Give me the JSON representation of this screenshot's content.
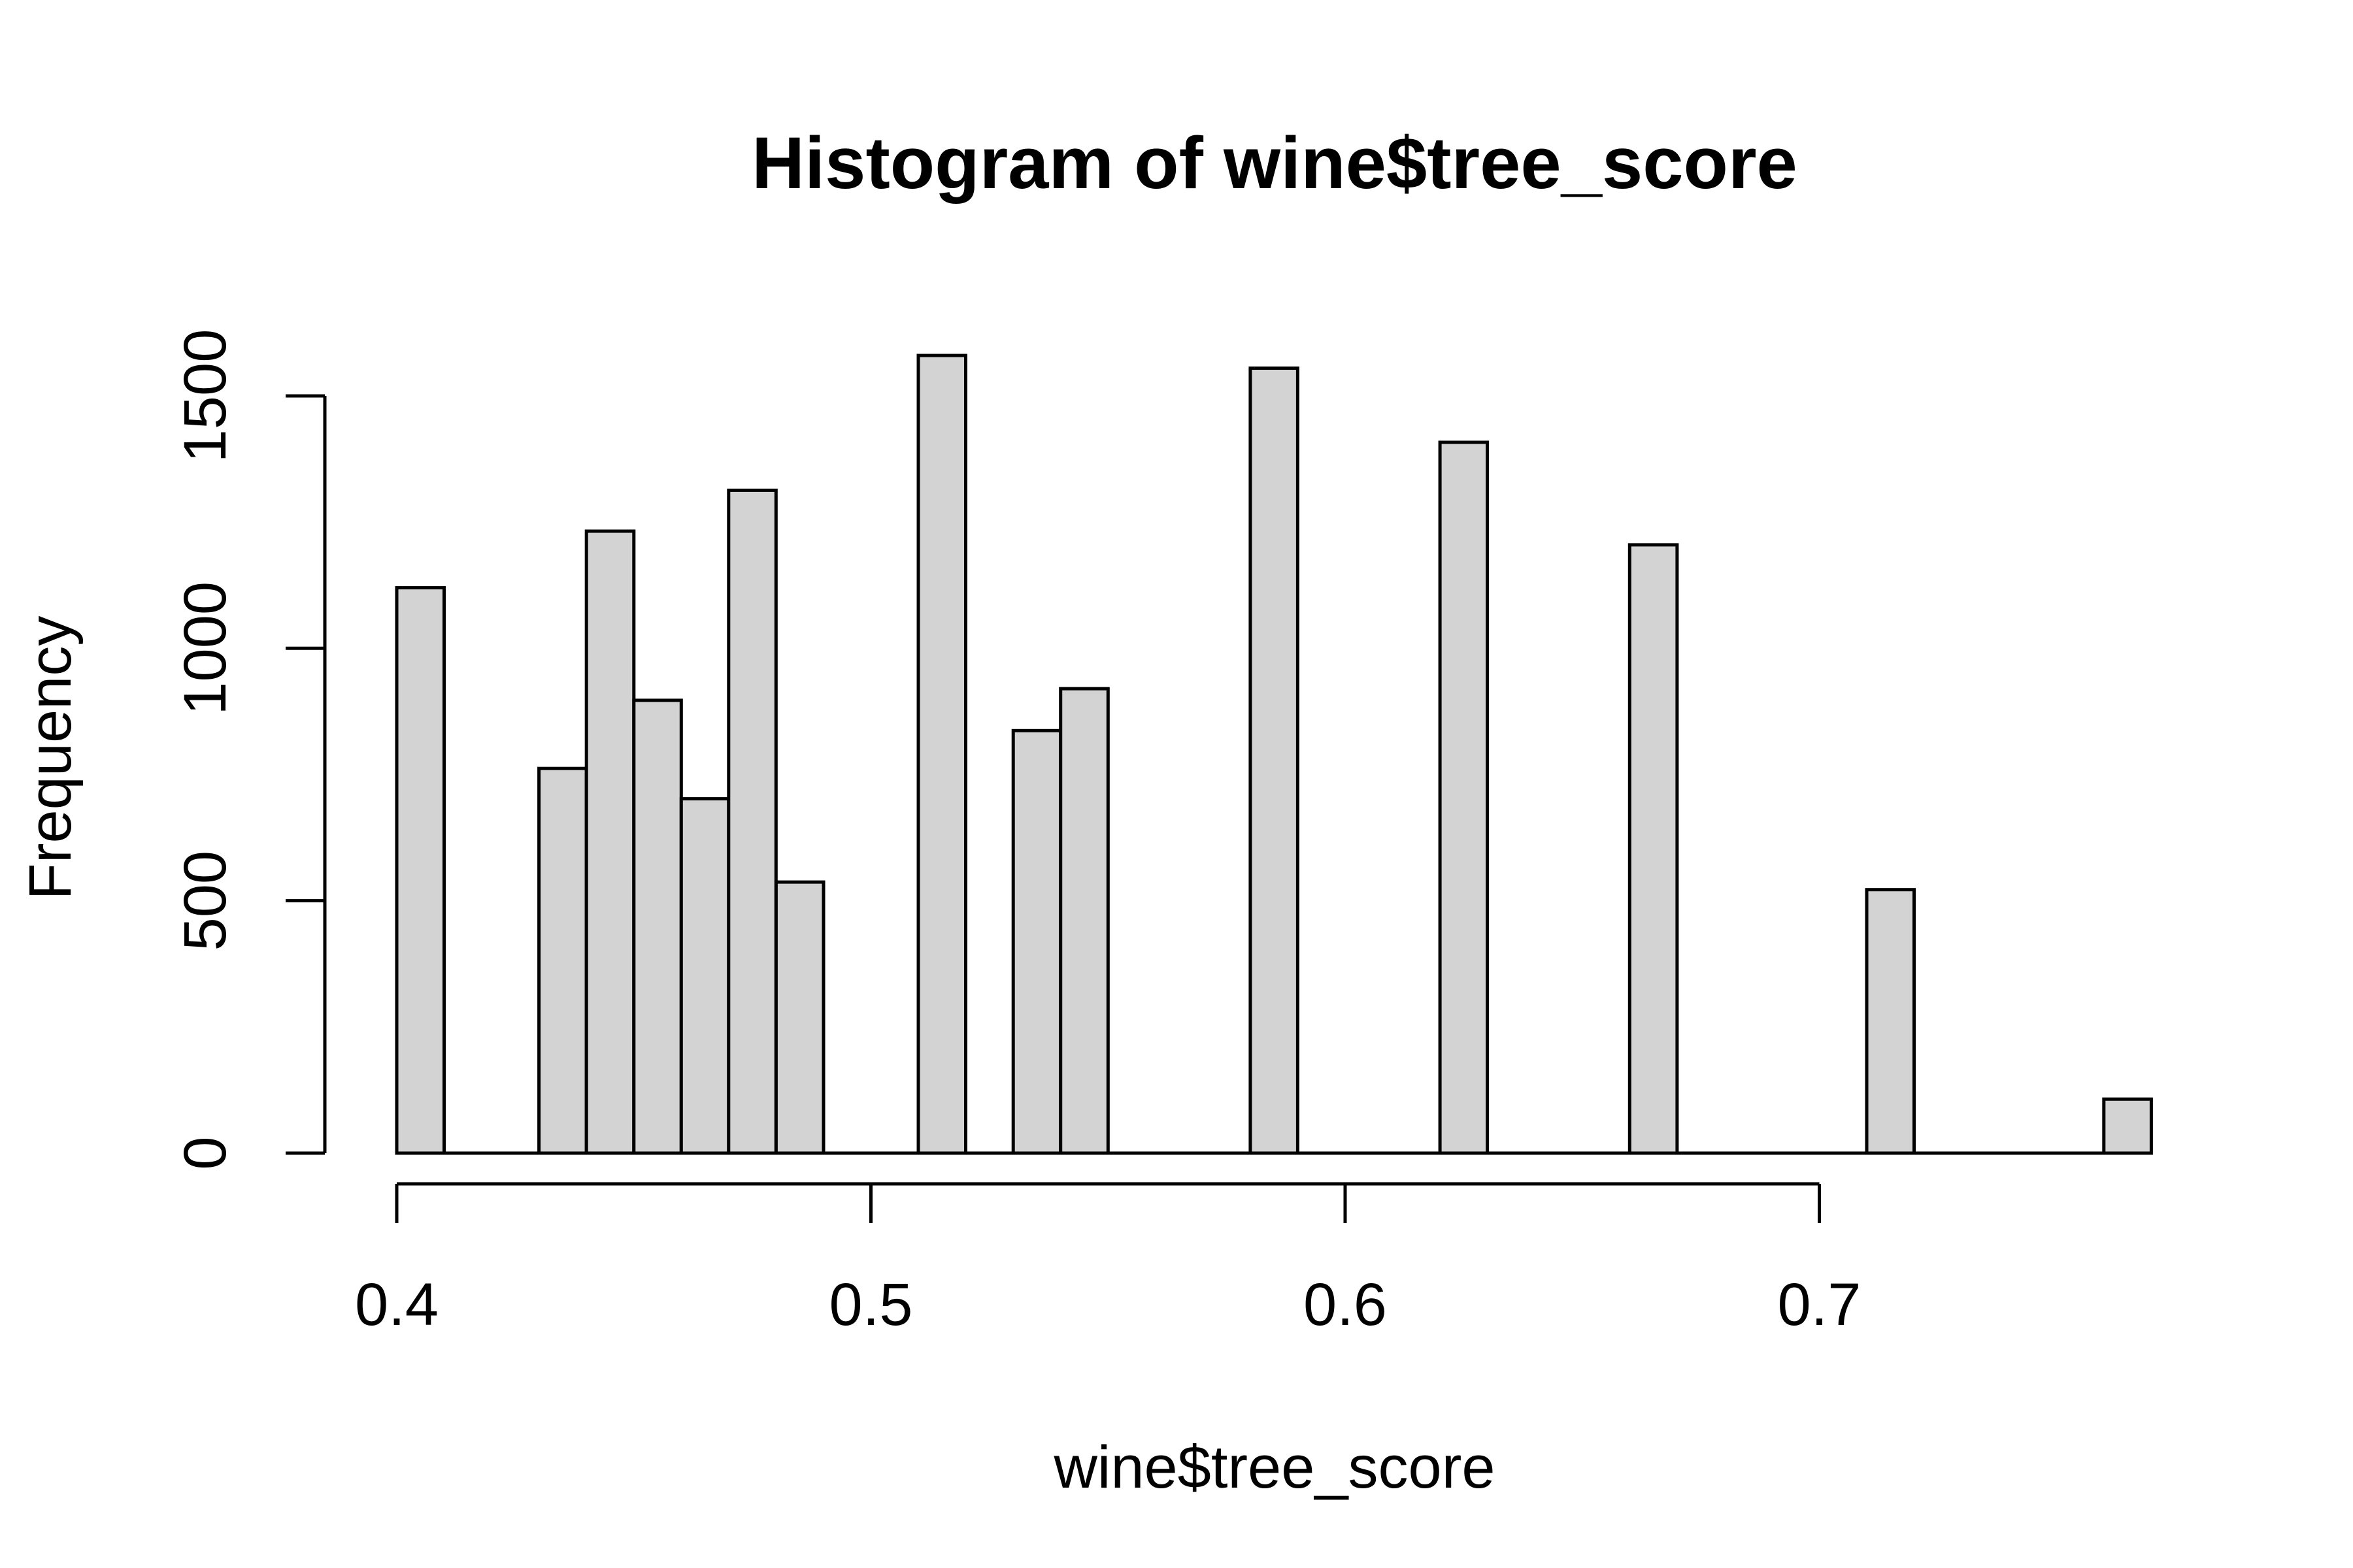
{
  "chart_data": {
    "type": "bar",
    "title": "Histogram of wine$tree_score",
    "xlabel": "wine$tree_score",
    "ylabel": "Frequency",
    "x_ticks": [
      0.4,
      0.5,
      0.6,
      0.7
    ],
    "x_tick_labels": [
      "0.4",
      "0.5",
      "0.6",
      "0.7"
    ],
    "y_ticks": [
      0,
      500,
      1000,
      1500
    ],
    "y_tick_labels": [
      "0",
      "500",
      "1000",
      "1500"
    ],
    "xlim": [
      0.4,
      0.7
    ],
    "ylim": [
      0,
      1500
    ],
    "bin_width": 0.01,
    "bins": [
      {
        "start": 0.4,
        "end": 0.41,
        "count": 1120
      },
      {
        "start": 0.41,
        "end": 0.42,
        "count": 0
      },
      {
        "start": 0.42,
        "end": 0.43,
        "count": 0
      },
      {
        "start": 0.43,
        "end": 0.44,
        "count": 762
      },
      {
        "start": 0.44,
        "end": 0.45,
        "count": 1232
      },
      {
        "start": 0.45,
        "end": 0.46,
        "count": 897
      },
      {
        "start": 0.46,
        "end": 0.47,
        "count": 702
      },
      {
        "start": 0.47,
        "end": 0.48,
        "count": 1313
      },
      {
        "start": 0.48,
        "end": 0.49,
        "count": 537
      },
      {
        "start": 0.49,
        "end": 0.5,
        "count": 0
      },
      {
        "start": 0.5,
        "end": 0.51,
        "count": 0
      },
      {
        "start": 0.51,
        "end": 0.52,
        "count": 1580
      },
      {
        "start": 0.52,
        "end": 0.53,
        "count": 0
      },
      {
        "start": 0.53,
        "end": 0.54,
        "count": 837
      },
      {
        "start": 0.54,
        "end": 0.55,
        "count": 920
      },
      {
        "start": 0.55,
        "end": 0.56,
        "count": 0
      },
      {
        "start": 0.56,
        "end": 0.57,
        "count": 0
      },
      {
        "start": 0.57,
        "end": 0.58,
        "count": 0
      },
      {
        "start": 0.58,
        "end": 0.59,
        "count": 1555
      },
      {
        "start": 0.59,
        "end": 0.6,
        "count": 0
      },
      {
        "start": 0.6,
        "end": 0.61,
        "count": 0
      },
      {
        "start": 0.61,
        "end": 0.62,
        "count": 0
      },
      {
        "start": 0.62,
        "end": 0.63,
        "count": 1408
      },
      {
        "start": 0.63,
        "end": 0.64,
        "count": 0
      },
      {
        "start": 0.64,
        "end": 0.65,
        "count": 0
      },
      {
        "start": 0.65,
        "end": 0.66,
        "count": 0
      },
      {
        "start": 0.66,
        "end": 0.67,
        "count": 1205
      },
      {
        "start": 0.67,
        "end": 0.68,
        "count": 0
      },
      {
        "start": 0.68,
        "end": 0.69,
        "count": 0
      },
      {
        "start": 0.69,
        "end": 0.7,
        "count": 0
      },
      {
        "start": 0.7,
        "end": 0.71,
        "count": 0
      },
      {
        "start": 0.71,
        "end": 0.72,
        "count": 522
      },
      {
        "start": 0.72,
        "end": 0.73,
        "count": 0
      },
      {
        "start": 0.73,
        "end": 0.74,
        "count": 0
      },
      {
        "start": 0.74,
        "end": 0.75,
        "count": 0
      },
      {
        "start": 0.75,
        "end": 0.76,
        "count": 0
      },
      {
        "start": 0.76,
        "end": 0.77,
        "count": 107
      }
    ],
    "bar_fill": "#d3d3d3",
    "bar_stroke": "#000000",
    "grid": false,
    "legend": "none"
  }
}
